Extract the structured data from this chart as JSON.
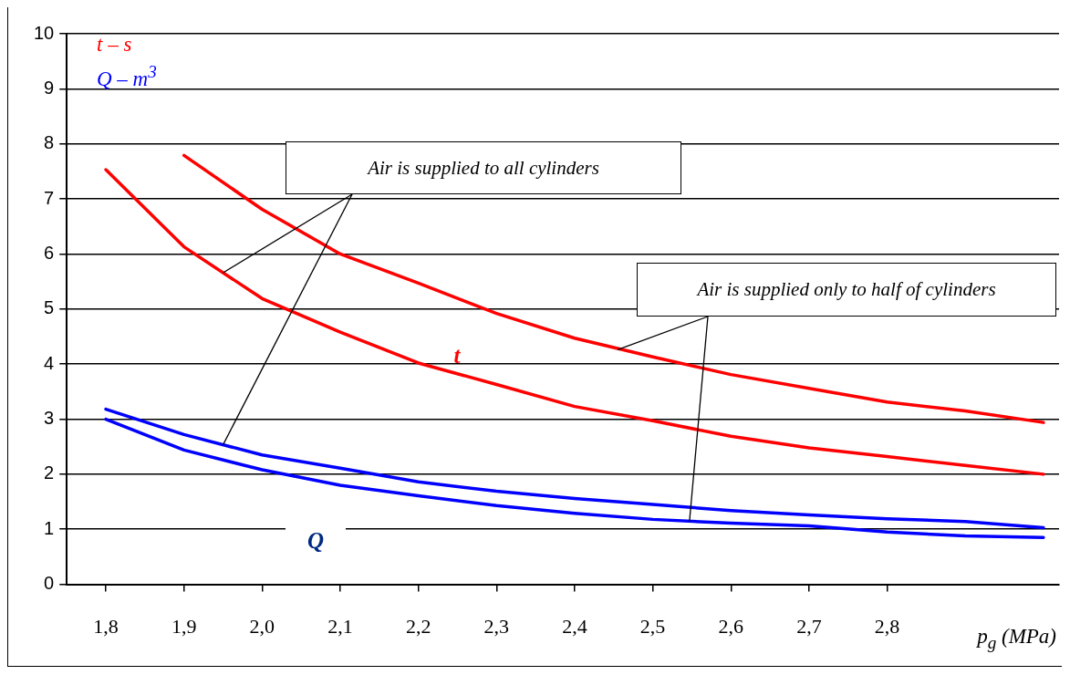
{
  "chart_data": {
    "type": "line",
    "xlabel": "p$_{g}$ (MPa)",
    "x": [
      1.8,
      1.9,
      2.0,
      2.1,
      2.2,
      2.3,
      2.4,
      2.5,
      2.6,
      2.7,
      2.8,
      2.9,
      3.0
    ],
    "series": [
      {
        "color": "#ff0000",
        "values": [
          null,
          7.79,
          6.81,
          6.0,
          5.47,
          4.92,
          4.47,
          4.13,
          3.81,
          3.56,
          3.31,
          3.15,
          2.94
        ]
      },
      {
        "color": "#ff0000",
        "values": [
          7.53,
          6.13,
          5.19,
          4.58,
          4.02,
          3.63,
          3.23,
          2.97,
          2.69,
          2.48,
          2.32,
          2.16,
          2.0
        ]
      },
      {
        "color": "#0000ff",
        "values": [
          3.18,
          2.72,
          2.35,
          2.11,
          1.86,
          1.69,
          1.56,
          1.45,
          1.34,
          1.26,
          1.19,
          1.14,
          1.03
        ]
      },
      {
        "color": "#0000ff",
        "values": [
          3.0,
          2.44,
          2.08,
          1.8,
          1.61,
          1.43,
          1.29,
          1.18,
          1.11,
          1.06,
          0.95,
          0.88,
          0.85
        ]
      }
    ],
    "xlim": [
      1.75,
      3.02
    ],
    "xticks": [
      {
        "value": 1.8,
        "label": "1,8"
      },
      {
        "value": 1.9,
        "label": "1,9"
      },
      {
        "value": 2.0,
        "label": "2,0"
      },
      {
        "value": 2.1,
        "label": "2,1"
      },
      {
        "value": 2.2,
        "label": "2,2"
      },
      {
        "value": 2.3,
        "label": "2,3"
      },
      {
        "value": 2.4,
        "label": "2,4"
      },
      {
        "value": 2.5,
        "label": "2,5"
      },
      {
        "value": 2.6,
        "label": "2,6"
      },
      {
        "value": 2.7,
        "label": "2,7"
      },
      {
        "value": 2.8,
        "label": "2,8"
      }
    ],
    "ylim": [
      0,
      10
    ],
    "yticks": [
      0,
      1,
      2,
      3,
      4,
      5,
      6,
      7,
      8,
      9,
      10
    ],
    "grid": "y",
    "legend": false,
    "marker": "none",
    "line_style": "solid",
    "annotations": [
      "t – s",
      "Q – m$^{3}$",
      "t",
      "Q",
      {
        "text": "Air is supplied to all cylinders",
        "x": 1.95,
        "y": 5.66
      },
      {
        "text": "Air is supplied only to half of cylinders",
        "x": 2.455,
        "y": 4.26
      }
    ]
  }
}
